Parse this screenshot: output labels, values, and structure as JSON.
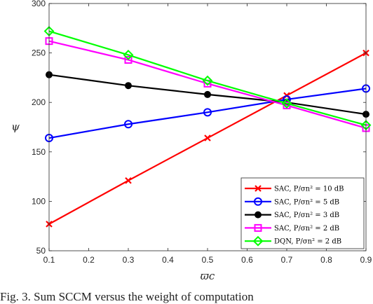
{
  "chart_data": {
    "type": "line",
    "xlabel": "ϖc",
    "ylabel": "ψ",
    "xlim": [
      0.1,
      0.9
    ],
    "ylim": [
      50,
      300
    ],
    "x": [
      0.1,
      0.3,
      0.5,
      0.7,
      0.9
    ],
    "x_ticks": [
      "0.1",
      "0.2",
      "0.3",
      "0.4",
      "0.5",
      "0.6",
      "0.7",
      "0.8",
      "0.9"
    ],
    "y_ticks": [
      "50",
      "100",
      "150",
      "200",
      "250",
      "300"
    ],
    "grid": false,
    "legend_position": "bottom-right",
    "series": [
      {
        "name": "SAC, P/σn² = 10 dB",
        "color": "#ff0000",
        "marker": "x",
        "values": [
          77,
          121,
          164,
          207,
          250
        ]
      },
      {
        "name": "SAC, P/σn² = 5 dB",
        "color": "#0000ff",
        "marker": "circle",
        "values": [
          164,
          178,
          190,
          203,
          214
        ]
      },
      {
        "name": "SAC, P/σn² = 3 dB",
        "color": "#000000",
        "marker": "dot",
        "values": [
          228,
          217,
          208,
          200,
          188
        ]
      },
      {
        "name": "SAC, P/σn² = 2 dB",
        "color": "#ff00ff",
        "marker": "square",
        "values": [
          262,
          243,
          219,
          197,
          174
        ]
      },
      {
        "name": "DQN, P/σn² = 2 dB",
        "color": "#00ff00",
        "marker": "diamond",
        "values": [
          272,
          248,
          222,
          199,
          177
        ]
      }
    ]
  },
  "caption": "Fig. 3. Sum SCCM versus the weight of computation"
}
